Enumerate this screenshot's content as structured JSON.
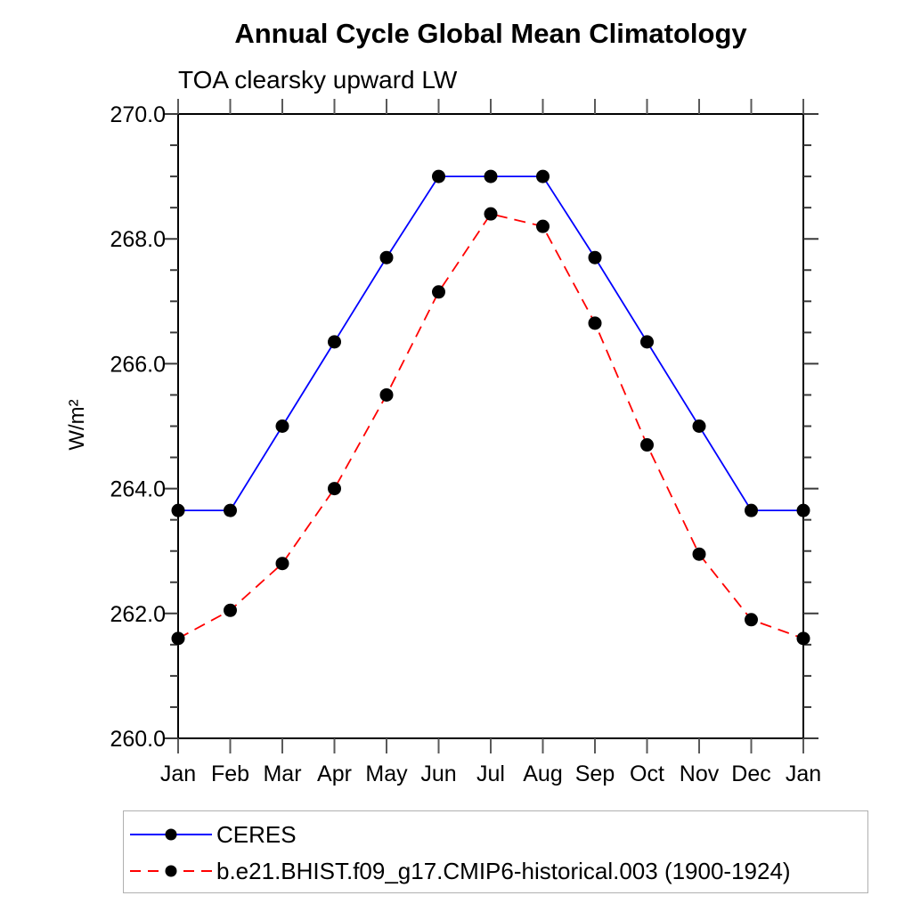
{
  "chart_data": {
    "type": "line",
    "title": "Annual Cycle Global Mean Climatology",
    "subtitle": "TOA clearsky upward LW",
    "ylabel": "W/m²",
    "xlabel": "",
    "categories": [
      "Jan",
      "Feb",
      "Mar",
      "Apr",
      "May",
      "Jun",
      "Jul",
      "Aug",
      "Sep",
      "Oct",
      "Nov",
      "Dec",
      "Jan"
    ],
    "ylim": [
      260.0,
      270.0
    ],
    "ytick_major": 2.0,
    "ytick_minor": 0.5,
    "ytick_labels": [
      "260.0",
      "262.0",
      "264.0",
      "266.0",
      "268.0",
      "270.0"
    ],
    "grid": false,
    "legend_position": "bottom-left",
    "legend_border": true,
    "marker": "filled-circle",
    "marker_color": "#000000",
    "series": [
      {
        "name": "CERES",
        "color": "#0000ff",
        "style": "solid",
        "values": [
          263.65,
          263.65,
          265.0,
          266.35,
          267.7,
          269.0,
          269.0,
          269.0,
          267.7,
          266.35,
          265.0,
          263.65,
          263.65
        ]
      },
      {
        "name": "b.e21.BHIST.f09_g17.CMIP6-historical.003 (1900-1924)",
        "color": "#ff0000",
        "style": "dashed",
        "values": [
          261.6,
          262.05,
          262.8,
          264.0,
          265.5,
          267.15,
          268.4,
          268.2,
          266.65,
          264.7,
          262.95,
          261.9,
          261.6
        ]
      }
    ]
  }
}
